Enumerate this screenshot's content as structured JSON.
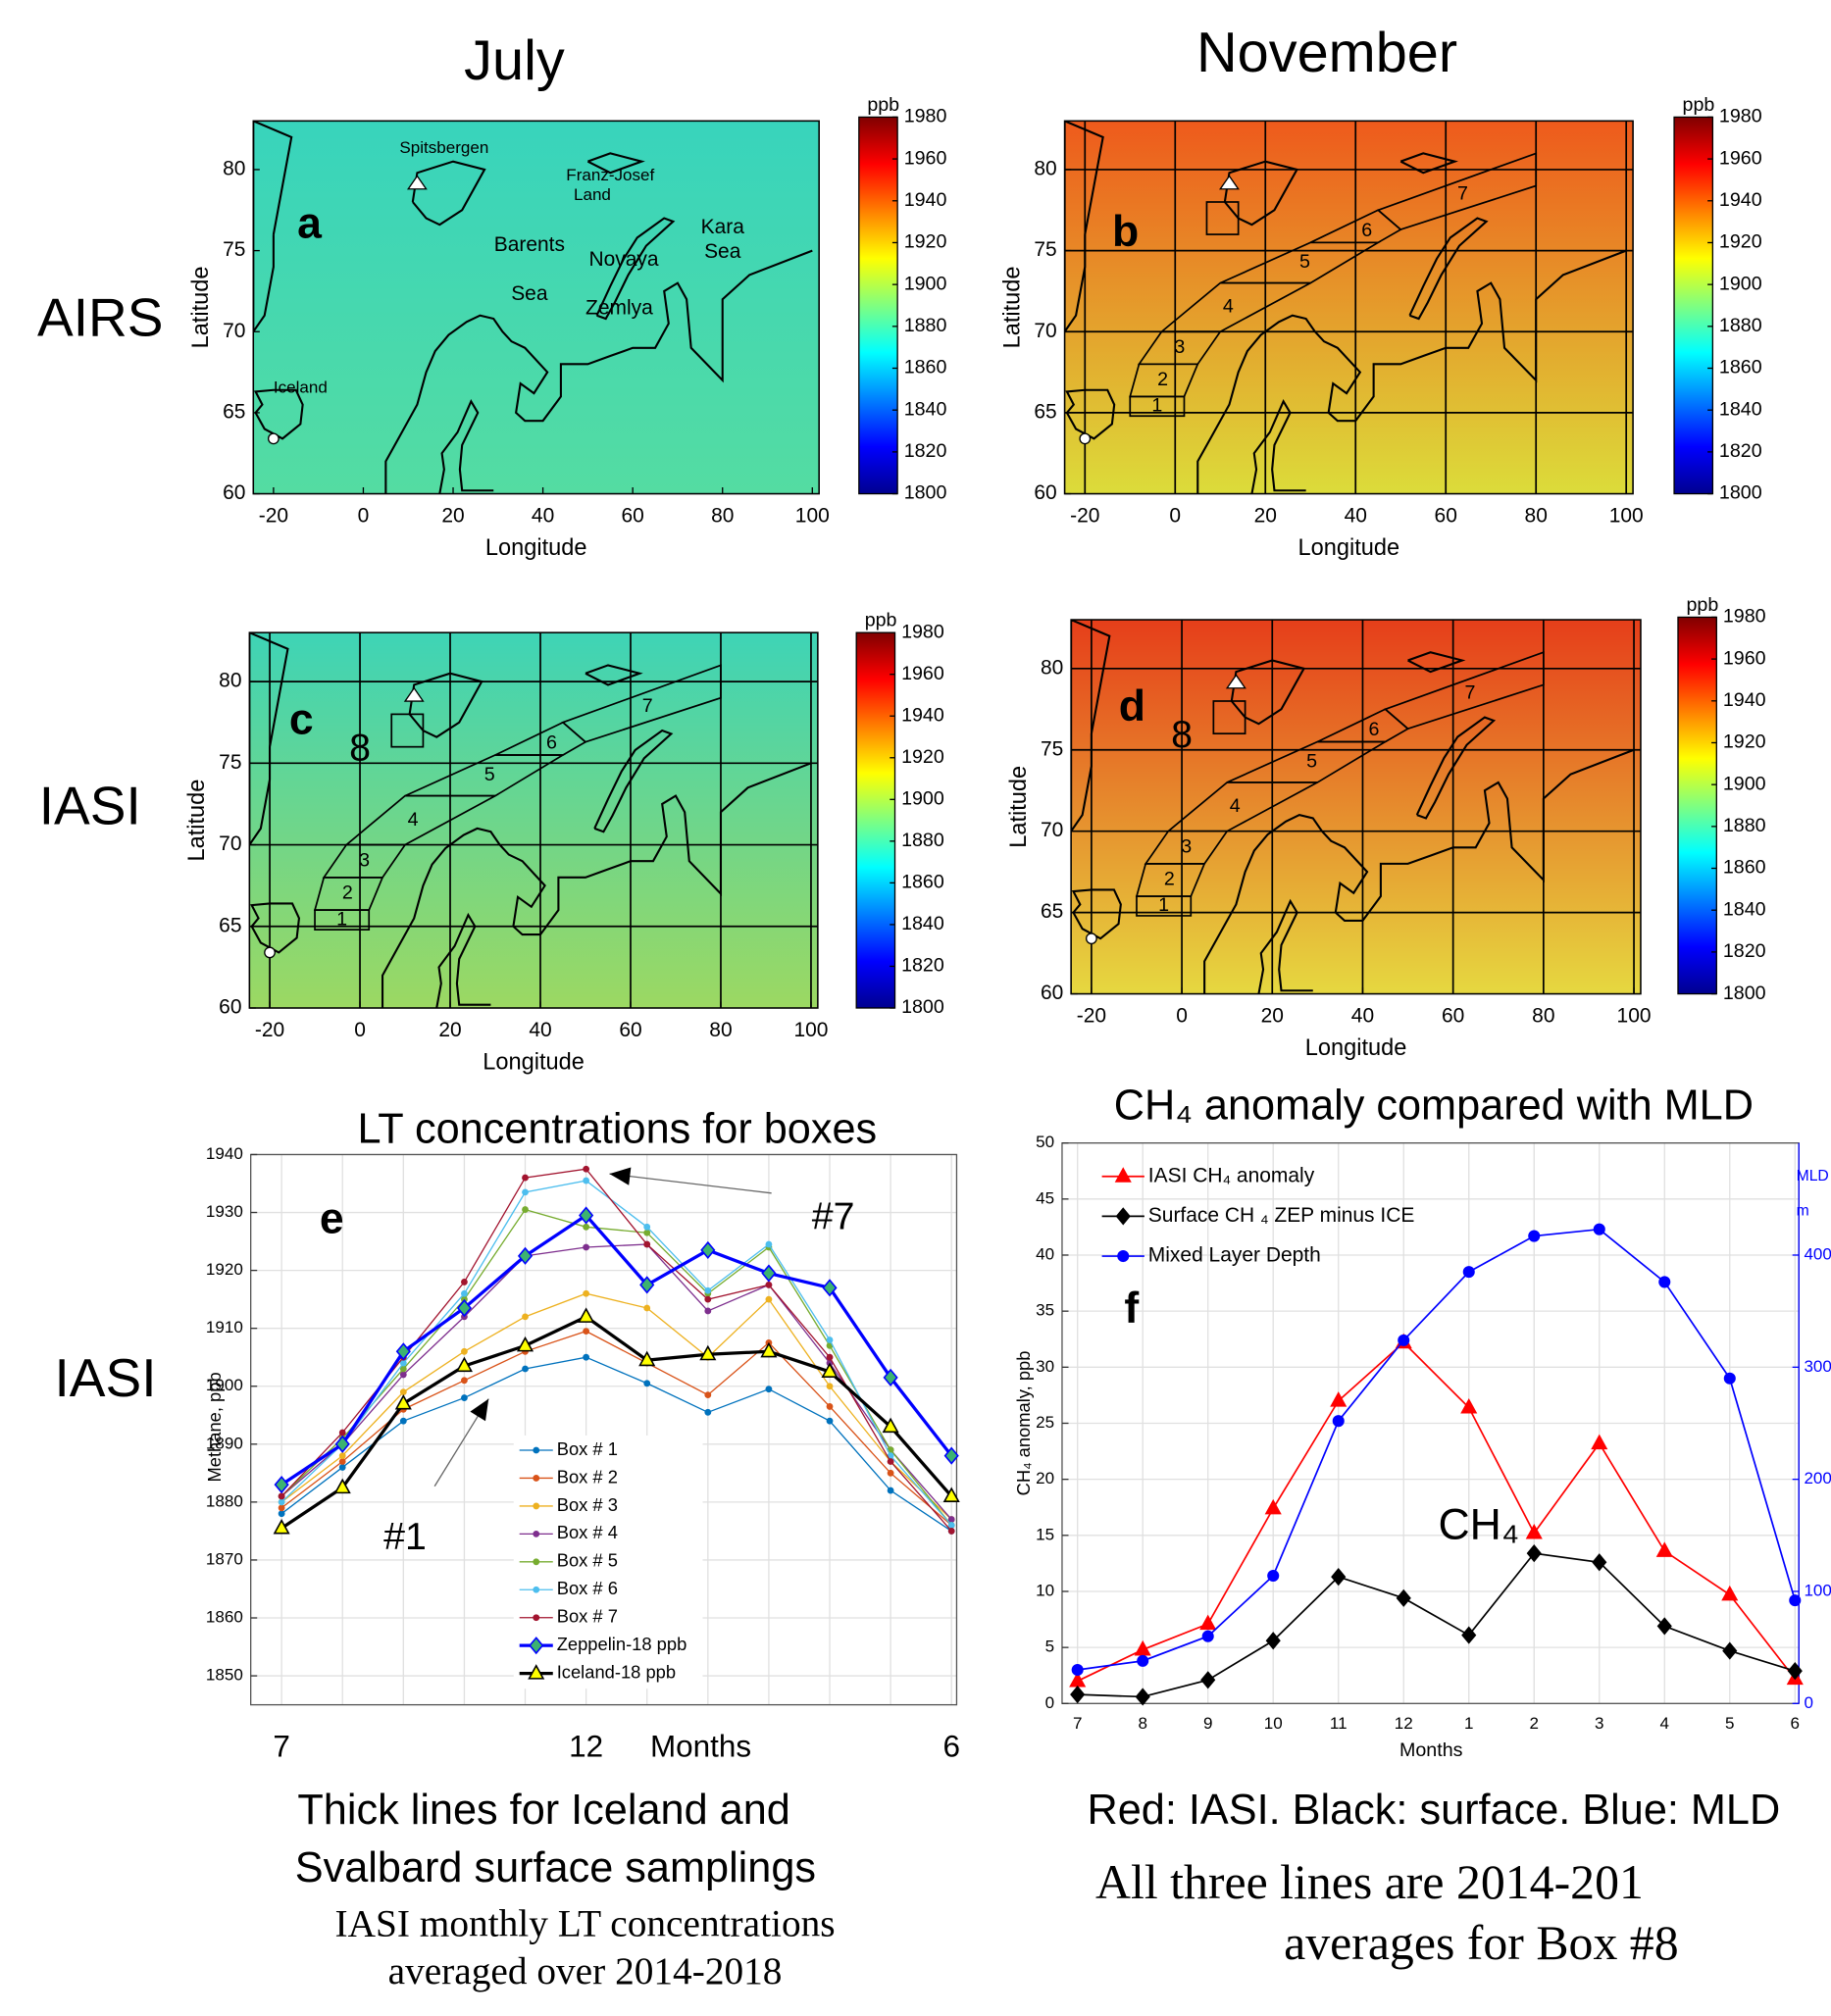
{
  "figure": {
    "col_titles": [
      "July",
      "November"
    ],
    "row_labels": [
      "AIRS",
      "IASI",
      "IASI"
    ],
    "captions_e": [
      "Thick lines for Iceland and",
      "Svalbard surface samplings",
      "IASI monthly LT concentrations",
      "averaged over 2014-2018"
    ],
    "captions_f": [
      "Red: IASI. Black: surface. Blue: MLD",
      "All three lines are 2014-201",
      "averages for Box #8"
    ]
  },
  "chart_data": [
    {
      "type": "map",
      "panel": "a",
      "xlabel": "Longitude",
      "ylabel": "Latitude",
      "xlim": [
        -24.5,
        101.5
      ],
      "ylim": [
        60,
        83
      ],
      "xticks": [
        -20,
        0,
        20,
        40,
        60,
        80,
        100
      ],
      "yticks": [
        60,
        65,
        70,
        75,
        80
      ],
      "grid": false,
      "fill": [
        "#38d4bc",
        "#54dca2"
      ],
      "places": [
        "Spitsbergen",
        "Franz-Josef",
        "Land",
        "Barents",
        "Sea",
        "Novaya",
        "Zemlya",
        "Kara",
        "Sea",
        "Iceland"
      ],
      "colorbar": {
        "label": "ppb",
        "lim": [
          1800,
          1980
        ],
        "ticks": [
          1800,
          1820,
          1840,
          1860,
          1880,
          1900,
          1920,
          1940,
          1960,
          1980
        ]
      }
    },
    {
      "type": "map",
      "panel": "b",
      "xlabel": "Longitude",
      "ylabel": "Latitude",
      "xlim": [
        -24.5,
        101.5
      ],
      "ylim": [
        60,
        83
      ],
      "xticks": [
        -20,
        0,
        20,
        40,
        60,
        80,
        100
      ],
      "yticks": [
        60,
        65,
        70,
        75,
        80
      ],
      "grid": true,
      "fill": [
        "#ee5a1c",
        "#dcdc3a"
      ],
      "boxes": [
        "1",
        "2",
        "3",
        "4",
        "5",
        "6",
        "7"
      ],
      "box8": true,
      "colorbar": {
        "label": "ppb",
        "lim": [
          1800,
          1980
        ],
        "ticks": [
          1800,
          1820,
          1840,
          1860,
          1880,
          1900,
          1920,
          1940,
          1960,
          1980
        ]
      }
    },
    {
      "type": "map",
      "panel": "c",
      "xlabel": "Longitude",
      "ylabel": "Latitude",
      "xlim": [
        -24.5,
        101.5
      ],
      "ylim": [
        60,
        83
      ],
      "xticks": [
        -20,
        0,
        20,
        40,
        60,
        80,
        100
      ],
      "yticks": [
        60,
        65,
        70,
        75,
        80
      ],
      "grid": true,
      "fill": [
        "#3ed4b6",
        "#9cd862"
      ],
      "boxes": [
        "1",
        "2",
        "3",
        "4",
        "5",
        "6",
        "7"
      ],
      "box8": true,
      "box8_label": "8",
      "colorbar": {
        "label": "ppb",
        "lim": [
          1800,
          1980
        ],
        "ticks": [
          1800,
          1820,
          1840,
          1860,
          1880,
          1900,
          1920,
          1940,
          1960,
          1980
        ]
      }
    },
    {
      "type": "map",
      "panel": "d",
      "xlabel": "Longitude",
      "ylabel": "Latitude",
      "xlim": [
        -24.5,
        101.5
      ],
      "ylim": [
        60,
        83
      ],
      "xticks": [
        -20,
        0,
        20,
        40,
        60,
        80,
        100
      ],
      "yticks": [
        60,
        65,
        70,
        75,
        80
      ],
      "grid": true,
      "fill": [
        "#e63e1a",
        "#e6d840"
      ],
      "boxes": [
        "1",
        "2",
        "3",
        "4",
        "5",
        "6",
        "7"
      ],
      "box8": true,
      "box8_label": "8",
      "colorbar": {
        "label": "ppb",
        "lim": [
          1800,
          1980
        ],
        "ticks": [
          1800,
          1820,
          1840,
          1860,
          1880,
          1900,
          1920,
          1940,
          1960,
          1980
        ]
      }
    },
    {
      "type": "line",
      "title": "LT concentrations for boxes",
      "panel": "e",
      "ylabel": "Methane, ppb",
      "xlabel": "Months",
      "categories": [
        "7",
        null,
        null,
        null,
        null,
        "12",
        null,
        null,
        null,
        null,
        null,
        "6"
      ],
      "ylim": [
        1845,
        1940
      ],
      "yticks": [
        1850,
        1860,
        1870,
        1880,
        1890,
        1900,
        1910,
        1920,
        1930,
        1940
      ],
      "grid": true,
      "annotations": [
        "#1",
        "#7"
      ],
      "series": [
        {
          "name": "Box # 1",
          "color": "#0072bd",
          "marker": "dot",
          "width": 1,
          "values": [
            1878,
            1886,
            1894,
            1898,
            1903,
            1905,
            1900.5,
            1895.5,
            1899.5,
            1894,
            1882,
            1875
          ]
        },
        {
          "name": "Box # 2",
          "color": "#d95319",
          "marker": "dot",
          "width": 1,
          "values": [
            1879,
            1887,
            1896,
            1901,
            1906,
            1909.5,
            1904,
            1898.5,
            1907.5,
            1896.5,
            1885,
            1876
          ]
        },
        {
          "name": "Box # 3",
          "color": "#edb120",
          "marker": "dot",
          "width": 1,
          "values": [
            1880,
            1888,
            1899,
            1906,
            1912,
            1916,
            1913.5,
            1905,
            1915,
            1900,
            1887,
            1877
          ]
        },
        {
          "name": "Box # 4",
          "color": "#7e2f8e",
          "marker": "dot",
          "width": 1,
          "values": [
            1881,
            1890,
            1902,
            1912,
            1922.5,
            1924,
            1924.5,
            1913,
            1917.5,
            1904,
            1889,
            1877
          ]
        },
        {
          "name": "Box # 5",
          "color": "#77ac30",
          "marker": "dot",
          "width": 1,
          "values": [
            1881,
            1891,
            1903,
            1915,
            1930.5,
            1927.5,
            1926.5,
            1916,
            1924,
            1907,
            1889,
            1876
          ]
        },
        {
          "name": "Box # 6",
          "color": "#4dbeee",
          "marker": "dot",
          "width": 1,
          "values": [
            1880,
            1890,
            1904,
            1916,
            1933.5,
            1935.5,
            1927.5,
            1916.5,
            1924.5,
            1908,
            1888,
            1876
          ]
        },
        {
          "name": "Box # 7",
          "color": "#a2142f",
          "marker": "dot",
          "width": 1,
          "values": [
            1881,
            1892,
            1905,
            1918,
            1936,
            1937.5,
            1924.5,
            1915,
            1917.5,
            1905,
            1887,
            1875
          ]
        },
        {
          "name": "Zeppelin-18 ppb",
          "color": "#0000ff",
          "marker": "diamond",
          "marker_color": "#3cb371",
          "width": 2.5,
          "values": [
            1883,
            1890,
            1906,
            1913.5,
            1922.5,
            1929.5,
            1917.5,
            1923.5,
            1919.5,
            1917,
            1901.5,
            1888
          ]
        },
        {
          "name": "Iceland-18 ppb",
          "color": "#000000",
          "marker": "triangle",
          "marker_color": "#ffff00",
          "width": 2.5,
          "values": [
            1875.5,
            1882.5,
            1897,
            1903.5,
            1907,
            1912,
            1904.5,
            1905.5,
            1906,
            1902.5,
            1893,
            1881
          ]
        }
      ]
    },
    {
      "type": "line",
      "title": "CH₄ anomaly compared with MLD",
      "panel": "f",
      "ylabel": "CH₄ anomaly, ppb",
      "xlabel": "Months",
      "y2label": [
        "MLD",
        "m"
      ],
      "categories": [
        "7",
        "8",
        "9",
        "10",
        "11",
        "12",
        "1",
        "2",
        "3",
        "4",
        "5",
        "6"
      ],
      "ylim": [
        0,
        50
      ],
      "yticks": [
        0,
        5,
        10,
        15,
        20,
        25,
        30,
        35,
        40,
        45,
        50
      ],
      "y2lim": [
        0,
        500
      ],
      "y2ticks": [
        0,
        100,
        200,
        300,
        400
      ],
      "y2color": "#0000ff",
      "grid": true,
      "annotations": [
        "CH₄"
      ],
      "series": [
        {
          "name": "IASI CH₄ anomaly",
          "color": "#ff0000",
          "marker": "triangle",
          "width": 1.3,
          "values": [
            2,
            4.8,
            7.1,
            17.4,
            27,
            32.2,
            26.4,
            15.2,
            23.2,
            13.6,
            9.7,
            2.2
          ]
        },
        {
          "name": "Surface CH ₄ ZEP minus ICE",
          "color": "#000000",
          "marker": "diamond",
          "width": 1.3,
          "values": [
            0.8,
            0.6,
            2.1,
            5.6,
            11.3,
            9.4,
            6.1,
            13.4,
            12.6,
            6.9,
            4.7,
            2.9
          ]
        },
        {
          "name": "Mixed Layer Depth",
          "color": "#0000ff",
          "marker": "circle",
          "width": 1.3,
          "axis": "y2",
          "values": [
            30,
            38,
            60,
            114,
            252,
            324,
            385,
            417,
            423,
            376,
            290,
            92
          ]
        }
      ]
    }
  ]
}
